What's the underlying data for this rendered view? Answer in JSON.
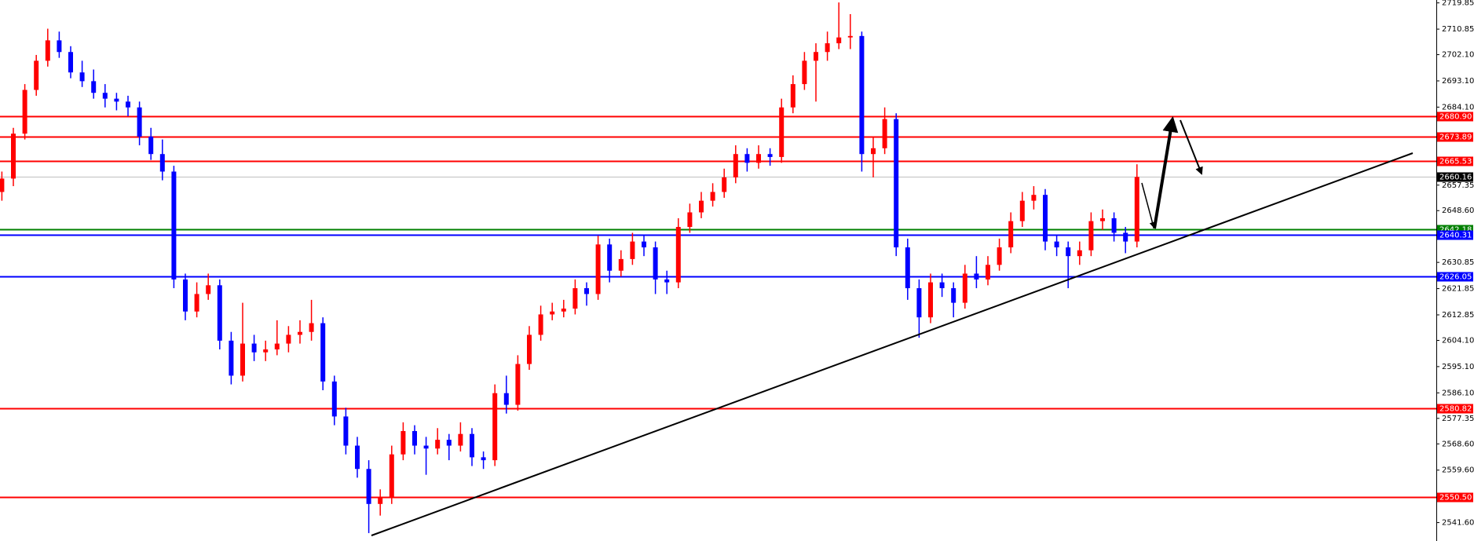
{
  "chart_data": {
    "type": "candlestick",
    "up_color": "#ff0000",
    "down_color": "#0000ff",
    "ylim": [
      2535.29,
      2720.84
    ],
    "yticks": [
      2719.85,
      2710.85,
      {
        "value": 2702.1,
        "label": "2702.10"
      },
      {
        "value": 2693.1,
        "label": "2693.10"
      },
      {
        "value": 2684.1,
        "label": "2684.10"
      },
      2657.35,
      {
        "value": 2648.6,
        "label": "2648.60"
      },
      2630.85,
      2621.85,
      2612.85,
      {
        "value": 2604.1,
        "label": "2604.10"
      },
      {
        "value": 2595.1,
        "label": "2595.10"
      },
      {
        "value": 2586.1,
        "label": "2586.10"
      },
      2577.35,
      {
        "value": 2568.6,
        "label": "2568.60"
      },
      {
        "value": 2559.6,
        "label": "2559.60"
      },
      {
        "value": 2541.6,
        "label": "2541.60"
      }
    ],
    "levels": [
      {
        "value": {
          "value": 2680.9,
          "label": "2680.90"
        },
        "color": "#ff0000"
      },
      {
        "value": 2673.89,
        "color": "#ff0000"
      },
      {
        "value": 2665.53,
        "color": "#ff0000"
      },
      {
        "value": 2660.16,
        "color": "#000000"
      },
      {
        "value": 2642.18,
        "color": "#008000"
      },
      {
        "value": 2640.31,
        "color": "#0000ff"
      },
      {
        "value": 2626.05,
        "color": "#0000ff"
      },
      {
        "value": 2580.82,
        "color": "#ff0000"
      },
      {
        "value": {
          "value": 2550.5,
          "label": "2550.50"
        },
        "color": "#ff0000"
      }
    ],
    "candles": [
      [
        2655,
        2662,
        2652,
        2659.6
      ],
      [
        2659.6,
        2677,
        2657,
        2675
      ],
      [
        2675,
        2692,
        2673,
        2690
      ],
      [
        2690,
        2702,
        2688,
        2700
      ],
      [
        2700,
        2711,
        2698,
        2707
      ],
      [
        2707,
        2710,
        2701,
        2703
      ],
      [
        2703,
        2705,
        2694,
        2696
      ],
      [
        2696,
        2700,
        2691,
        2693
      ],
      [
        2693,
        2697,
        2687,
        2689
      ],
      [
        2689,
        2692,
        2684,
        2687
      ],
      [
        2687,
        2689,
        2683,
        2686
      ],
      [
        2686,
        2688,
        2681,
        2684
      ],
      [
        2684,
        2686,
        2671,
        2674
      ],
      [
        2674,
        2677,
        2666,
        2668
      ],
      [
        2668,
        2673,
        2659,
        2662
      ],
      [
        2662,
        2664,
        2622,
        2625
      ],
      [
        2625,
        2627,
        2611,
        2614
      ],
      [
        2614,
        2624,
        2612,
        2620
      ],
      [
        2620,
        2627,
        2618,
        2623
      ],
      [
        2623,
        2625,
        2601,
        2604
      ],
      [
        2604,
        2607,
        2589,
        2592
      ],
      [
        2592,
        2617,
        2590,
        2603
      ],
      [
        2603,
        2606,
        2597,
        2600
      ],
      [
        2600,
        2604,
        2597,
        2601
      ],
      [
        2601,
        2611,
        2599,
        2603
      ],
      [
        2603,
        2609,
        2600,
        2606
      ],
      [
        2606,
        2611,
        2603,
        2607
      ],
      [
        2607,
        2618,
        2604,
        2610
      ],
      [
        2610,
        2612,
        2587,
        2590
      ],
      [
        2590,
        2592,
        2575,
        2578
      ],
      [
        2578,
        2581,
        2565,
        2568
      ],
      [
        2568,
        2571,
        2557,
        2560
      ],
      [
        2560,
        2563,
        2538,
        2548
      ],
      [
        2548,
        2553,
        2544,
        2550
      ],
      [
        2550,
        2568,
        2548,
        2565
      ],
      [
        2565,
        2576,
        2563,
        2573
      ],
      [
        2573,
        2575,
        2565,
        2568
      ],
      [
        2568,
        2571,
        2558,
        2567
      ],
      [
        2567,
        2574,
        2565,
        2570
      ],
      [
        2570,
        2572,
        2563,
        2568
      ],
      [
        2568,
        2576,
        2566,
        2572
      ],
      [
        2572,
        2574,
        2561,
        2564
      ],
      [
        2564,
        2566,
        2560,
        2563
      ],
      [
        2563,
        2589,
        2561,
        2586
      ],
      [
        2586,
        2592,
        2579,
        2582
      ],
      [
        2582,
        2599,
        2580,
        2596
      ],
      [
        2596,
        2609,
        2594,
        2606
      ],
      [
        2606,
        2616,
        2604,
        2613
      ],
      [
        2613,
        2617,
        2611,
        2614
      ],
      [
        2614,
        2618,
        2612,
        2615
      ],
      [
        2615,
        2625,
        2613,
        2622
      ],
      [
        2622,
        2624,
        2616,
        2620
      ],
      [
        2620,
        2640,
        2618,
        2637
      ],
      [
        2637,
        2639,
        2624,
        2628
      ],
      [
        2628,
        2635,
        2626,
        2632
      ],
      [
        2632,
        2641,
        2630,
        2638
      ],
      [
        2638,
        2640,
        2633,
        2636
      ],
      [
        2636,
        2638,
        2620,
        2625
      ],
      [
        2625,
        2628,
        2620,
        2624
      ],
      [
        2624,
        2646,
        2622,
        2643
      ],
      [
        2643,
        2651,
        2641,
        2648
      ],
      [
        2648,
        2655,
        2646,
        2652
      ],
      [
        2652,
        2658,
        2650,
        2655
      ],
      [
        2655,
        2663,
        2653,
        2660
      ],
      [
        2660,
        2671,
        2658,
        2668
      ],
      [
        2668,
        2670,
        2662,
        2665
      ],
      [
        2665,
        2671,
        2663,
        2668
      ],
      [
        2668,
        2670,
        2664,
        2667
      ],
      [
        2667,
        2687,
        2665,
        2684
      ],
      [
        2684,
        2695,
        2682,
        2692
      ],
      [
        2692,
        2703,
        2690,
        2700
      ],
      [
        2700,
        2706,
        2686,
        2703
      ],
      [
        2703,
        2710,
        2700,
        2706
      ],
      [
        2706,
        2720,
        2704,
        2708
      ],
      [
        2708,
        2716,
        2704,
        2708.5
      ],
      [
        2708.5,
        2710,
        2662,
        2668
      ],
      [
        2668,
        2674,
        2660,
        2670
      ],
      [
        2670,
        2684,
        2668,
        2680
      ],
      [
        2680,
        2682,
        2633,
        2636
      ],
      [
        2636,
        2639,
        2618,
        2622
      ],
      [
        2622,
        2625,
        2605,
        2612
      ],
      [
        2612,
        2627,
        2610,
        2624
      ],
      [
        2624,
        2627,
        2619,
        2622
      ],
      [
        2622,
        2624,
        2612,
        2617
      ],
      [
        2617,
        2630,
        2615,
        2627
      ],
      [
        2627,
        2633,
        2622,
        2625
      ],
      [
        2625,
        2633,
        2623,
        2630
      ],
      [
        2630,
        2639,
        2628,
        2636
      ],
      [
        2636,
        2648,
        2634,
        2645
      ],
      [
        2645,
        2655,
        2643,
        2652
      ],
      [
        2652,
        2657,
        2649,
        2654
      ],
      [
        2654,
        2656,
        2635,
        2638
      ],
      [
        2638,
        2640,
        2633,
        2636
      ],
      [
        2636,
        2638,
        2622,
        2633
      ],
      [
        2633,
        2638,
        2630,
        2635
      ],
      [
        2635,
        2648,
        2633,
        2645
      ],
      [
        2645,
        2649,
        2642,
        2646
      ],
      [
        2646,
        2648,
        2638,
        2641
      ],
      [
        2641,
        2643,
        2634,
        2638
      ],
      [
        2638,
        2664.5,
        2636,
        2660.16
      ]
    ]
  }
}
